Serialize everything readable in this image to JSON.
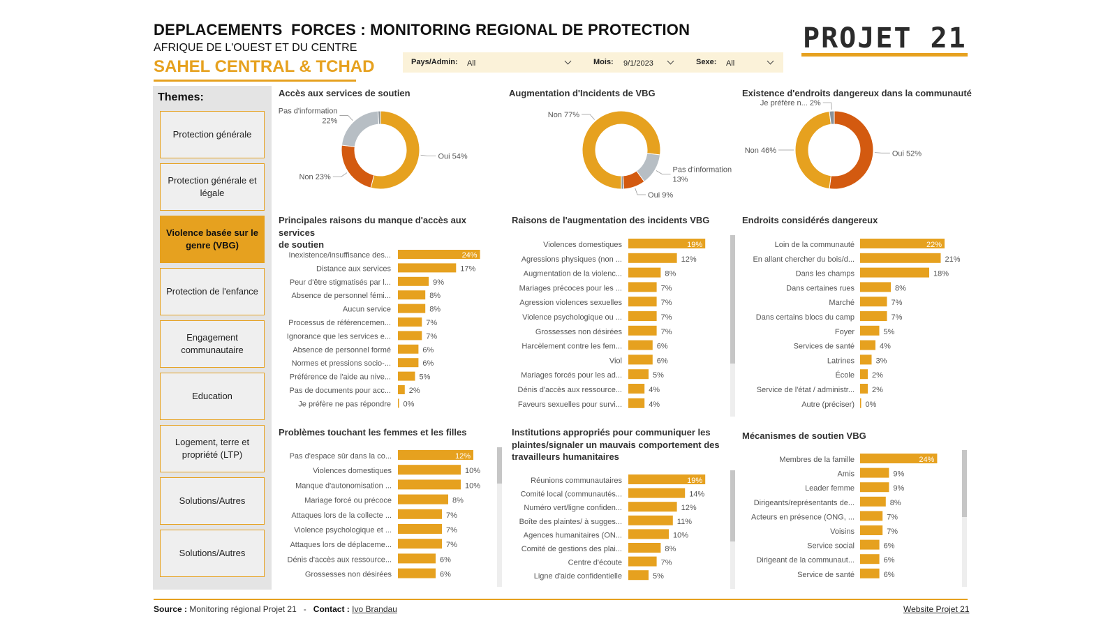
{
  "header": {
    "title": "DEPLACEMENTS  FORCES : MONITORING REGIONAL DE PROTECTION",
    "subtitle": "AFRIQUE DE L'OUEST ET DU CENTRE",
    "region": "SAHEL CENTRAL & TCHAD",
    "logo": "PROJET 21"
  },
  "filters": {
    "country_label": "Pays/Admin:",
    "country_value": "All",
    "month_label": "Mois:",
    "month_value": "9/1/2023",
    "sex_label": "Sexe:",
    "sex_value": "All"
  },
  "sidebar": {
    "title": "Themes:",
    "items": [
      {
        "label": "Protection générale",
        "active": false
      },
      {
        "label": "Protection générale et légale",
        "active": false
      },
      {
        "label": "Violence basée sur le genre (VBG)",
        "active": true
      },
      {
        "label": "Protection de l'enfance",
        "active": false
      },
      {
        "label": "Engagement communautaire",
        "active": false
      },
      {
        "label": "Education",
        "active": false
      },
      {
        "label": "Logement, terre et propriété (LTP)",
        "active": false
      },
      {
        "label": "Solutions/Autres",
        "active": false
      },
      {
        "label": "Solutions/Autres",
        "active": false
      }
    ]
  },
  "colors": {
    "accent": "#e6a11f",
    "orange_dark": "#d35a10",
    "grey": "#b7bec4",
    "dark_grey": "#8a9299",
    "label_highlight": "#ffffff"
  },
  "chart_data": [
    {
      "id": "acces_services",
      "type": "pie",
      "title": "Accès aux services de soutien",
      "slices": [
        {
          "name": "Oui",
          "value": 54,
          "color": "#e6a11f",
          "label": "Oui 54%"
        },
        {
          "name": "Non",
          "value": 23,
          "color": "#d35a10",
          "label": "Non 23%"
        },
        {
          "name": "Pas d'information",
          "value": 22,
          "color": "#b7bec4",
          "label": "Pas d'information",
          "label2": "22%"
        },
        {
          "name": "",
          "value": 1,
          "color": "#8a9299",
          "label": ""
        }
      ]
    },
    {
      "id": "augmentation_vbg",
      "type": "pie",
      "title": "Augmentation d'Incidents de VBG",
      "slices": [
        {
          "name": "Non",
          "value": 77,
          "color": "#e6a11f",
          "label": "Non 77%"
        },
        {
          "name": "Pas d'information",
          "value": 13,
          "color": "#b7bec4",
          "label": "Pas d'information",
          "label2": "13%"
        },
        {
          "name": "Oui",
          "value": 9,
          "color": "#d35a10",
          "label": "Oui 9%"
        },
        {
          "name": "",
          "value": 1,
          "color": "#8a9299",
          "label": ""
        }
      ]
    },
    {
      "id": "endroits_dangereux_existence",
      "type": "pie",
      "title": "Existence d'endroits dangereux dans la communauté",
      "slices": [
        {
          "name": "Oui",
          "value": 52,
          "color": "#d35a10",
          "label": "Oui 52%"
        },
        {
          "name": "Non",
          "value": 46,
          "color": "#e6a11f",
          "label": "Non 46%"
        },
        {
          "name": "Je préfère n...",
          "value": 2,
          "color": "#8a9299",
          "label": "Je préfère n... 2%"
        }
      ]
    },
    {
      "id": "raisons_manque_acces",
      "type": "bar",
      "title": "Principales raisons du manque d'accès aux services de soutien",
      "categories": [
        "Inexistence/insuffisance des...",
        "Distance aux services",
        "Peur d'être stigmatisés par l...",
        "Absence de personnel fémi...",
        "Aucun service",
        "Processus de référencemen...",
        "Ignorance que les services e...",
        "Absence de personnel formé",
        "Normes et pressions socio-...",
        "Préférence de l'aide au nive...",
        "Pas de documents pour acc...",
        "Je préfère ne pas répondre"
      ],
      "values": [
        24,
        17,
        9,
        8,
        8,
        7,
        7,
        6,
        6,
        5,
        2,
        0
      ],
      "labels": [
        "24%",
        "17%",
        "9%",
        "8%",
        "8%",
        "7%",
        "7%",
        "6%",
        "6%",
        "5%",
        "2%",
        "0%"
      ]
    },
    {
      "id": "raisons_augmentation_vbg",
      "type": "bar",
      "title": "Raisons de l'augmentation des incidents VBG",
      "categories": [
        "Violences domestiques",
        "Agressions physiques (non ...",
        "Augmentation de la violenc...",
        "Mariages précoces pour les ...",
        "Agression violences sexuelles",
        "Violence psychologique ou ...",
        "Grossesses non désirées",
        "Harcèlement contre les fem...",
        "Viol",
        "Mariages forcés pour les ad...",
        "Dénis d'accès aux ressource...",
        "Faveurs sexuelles pour survi..."
      ],
      "values": [
        19,
        12,
        8,
        7,
        7,
        7,
        7,
        6,
        6,
        5,
        4,
        4
      ],
      "labels": [
        "19%",
        "12%",
        "8%",
        "7%",
        "7%",
        "7%",
        "7%",
        "6%",
        "6%",
        "5%",
        "4%",
        "4%"
      ]
    },
    {
      "id": "endroits_consideres_dangereux",
      "type": "bar",
      "title": "Endroits considérés dangereux",
      "categories": [
        "Loin de la communauté",
        "En allant chercher du bois/d...",
        "Dans les champs",
        "Dans certaines rues",
        "Marché",
        "Dans certains blocs du camp",
        "Foyer",
        "Services de santé",
        "Latrines",
        "École",
        "Service de l'état / administr...",
        "Autre (préciser)"
      ],
      "values": [
        22,
        21,
        18,
        8,
        7,
        7,
        5,
        4,
        3,
        2,
        2,
        0
      ],
      "labels": [
        "22%",
        "21%",
        "18%",
        "8%",
        "7%",
        "7%",
        "5%",
        "4%",
        "3%",
        "2%",
        "2%",
        "0%"
      ]
    },
    {
      "id": "problemes_femmes_filles",
      "type": "bar",
      "title": "Problèmes touchant les femmes et les filles",
      "categories": [
        "Pas d'espace sûr dans la co...",
        "Violences domestiques",
        "Manque d'autonomisation ...",
        "Mariage forcé ou précoce",
        "Attaques lors de la collecte ...",
        "Violence psychologique et ...",
        "Attaques lors de déplaceme...",
        "Dénis d'accès aux ressource...",
        "Grossesses non désirées"
      ],
      "values": [
        12,
        10,
        10,
        8,
        7,
        7,
        7,
        6,
        6
      ],
      "labels": [
        "12%",
        "10%",
        "10%",
        "8%",
        "7%",
        "7%",
        "7%",
        "6%",
        "6%"
      ]
    },
    {
      "id": "institutions_plaintes",
      "type": "bar",
      "title": "Institutions appropriés pour communiquer les plaintes/signaler un mauvais comportement des travailleurs humanitaires",
      "title_lines": [
        "Institutions appropriés pour communiquer les",
        "plaintes/signaler un mauvais comportement des",
        "travailleurs humanitaires"
      ],
      "categories": [
        "Réunions communautaires",
        "Comité local (communautés...",
        "Numéro vert/ligne confiden...",
        "Boîte des plaintes/ à sugges...",
        "Agences humanitaires (ON...",
        "Comité de gestions des plai...",
        "Centre d'écoute",
        "Ligne d'aide confidentielle"
      ],
      "values": [
        19,
        14,
        12,
        11,
        10,
        8,
        7,
        5
      ],
      "labels": [
        "19%",
        "14%",
        "12%",
        "11%",
        "10%",
        "8%",
        "7%",
        "5%"
      ]
    },
    {
      "id": "mecanismes_soutien_vbg",
      "type": "bar",
      "title": "Mécanismes de soutien VBG",
      "categories": [
        "Membres de la famille",
        "Amis",
        "Leader femme",
        "Dirigeants/représentants de...",
        "Acteurs en présence (ONG, ...",
        "Voisins",
        "Service social",
        "Dirigeant de la communaut...",
        "Service de santé"
      ],
      "values": [
        24,
        9,
        9,
        8,
        7,
        7,
        6,
        6,
        6
      ],
      "labels": [
        "24%",
        "9%",
        "9%",
        "8%",
        "7%",
        "7%",
        "6%",
        "6%",
        "6%"
      ]
    }
  ],
  "titles": {
    "raisons_manque_acces_l1": "Principales raisons du manque d'accès aux services",
    "raisons_manque_acces_l2": "de soutien"
  },
  "footer": {
    "source_label": "Source :",
    "source_value": " Monitoring régional Projet 21",
    "sep": "   -   ",
    "contact_label": "Contact :",
    "contact_value": "Ivo Brandau",
    "website": "Website Projet 21"
  }
}
